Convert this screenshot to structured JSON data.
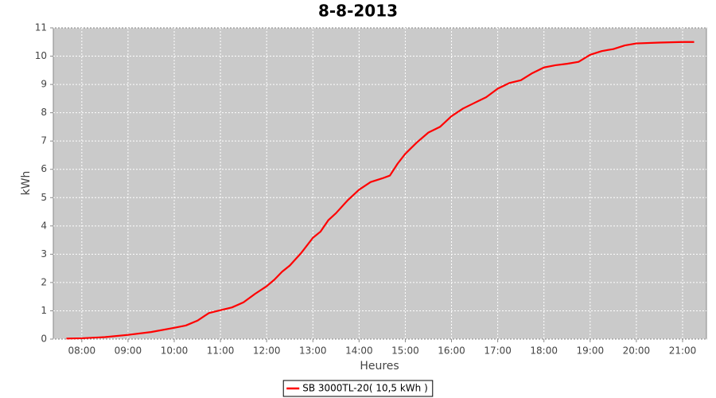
{
  "chart_data": {
    "type": "line",
    "title": "8-8-2013",
    "x_label": "Heures",
    "y_label": "kWh",
    "x": [
      "07:40",
      "08:00",
      "08:30",
      "09:00",
      "09:30",
      "10:00",
      "10:15",
      "10:30",
      "10:45",
      "11:00",
      "11:15",
      "11:30",
      "11:45",
      "12:00",
      "12:10",
      "12:20",
      "12:30",
      "12:45",
      "13:00",
      "13:10",
      "13:20",
      "13:30",
      "13:45",
      "14:00",
      "14:15",
      "14:30",
      "14:40",
      "14:50",
      "15:00",
      "15:15",
      "15:30",
      "15:45",
      "16:00",
      "16:15",
      "16:30",
      "16:45",
      "17:00",
      "17:15",
      "17:30",
      "17:45",
      "18:00",
      "18:15",
      "18:30",
      "18:45",
      "19:00",
      "19:15",
      "19:30",
      "19:45",
      "20:00",
      "20:30",
      "21:00",
      "21:15"
    ],
    "series": [
      {
        "name": "SB 3000TL-20( 10,5 kWh )",
        "color": "#ff0000",
        "values": [
          0.02,
          0.03,
          0.07,
          0.15,
          0.25,
          0.4,
          0.48,
          0.65,
          0.92,
          1.02,
          1.12,
          1.3,
          1.6,
          1.87,
          2.1,
          2.38,
          2.6,
          3.05,
          3.58,
          3.8,
          4.2,
          4.45,
          4.9,
          5.28,
          5.55,
          5.68,
          5.78,
          6.2,
          6.55,
          6.95,
          7.3,
          7.5,
          7.88,
          8.15,
          8.35,
          8.55,
          8.85,
          9.05,
          9.15,
          9.4,
          9.6,
          9.68,
          9.73,
          9.8,
          10.05,
          10.18,
          10.25,
          10.38,
          10.45,
          10.48,
          10.5,
          10.5
        ]
      }
    ],
    "xlim": [
      "07:23",
      "21:31"
    ],
    "xticks": [
      "08:00",
      "09:00",
      "10:00",
      "11:00",
      "12:00",
      "13:00",
      "14:00",
      "15:00",
      "16:00",
      "17:00",
      "18:00",
      "19:00",
      "20:00",
      "21:00"
    ],
    "ylim": [
      0,
      11
    ],
    "yticks": [
      0,
      1,
      2,
      3,
      4,
      5,
      6,
      7,
      8,
      9,
      10,
      11
    ],
    "grid": true,
    "legend": "bottom"
  }
}
